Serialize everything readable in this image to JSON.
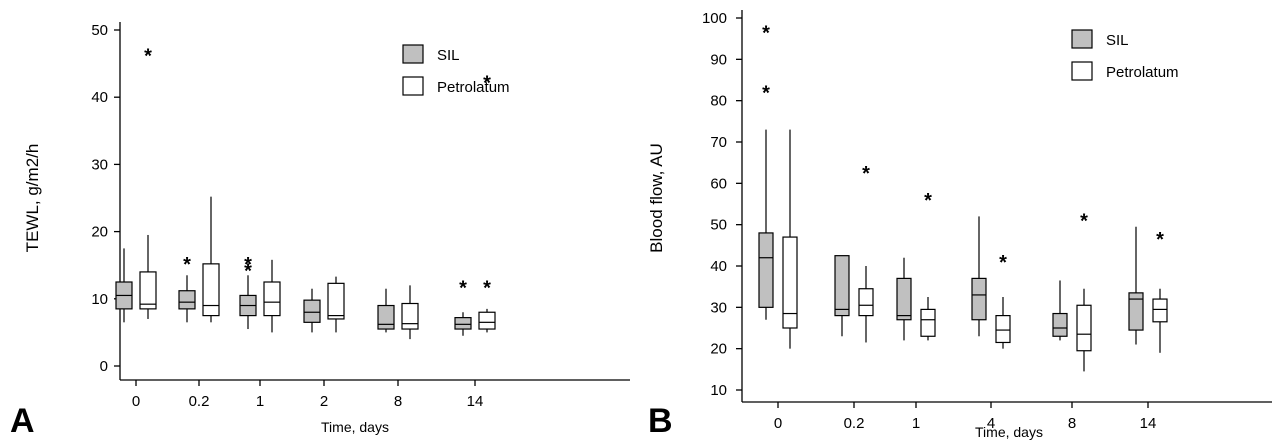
{
  "chart_data": [
    {
      "panel_label": "A",
      "type": "box",
      "ylabel": "TEWL, g/m2/h",
      "xlabel": "Time, days",
      "ylim": [
        0,
        50
      ],
      "yticks": [
        0,
        10,
        20,
        30,
        40,
        50
      ],
      "legend_position": "top-right",
      "categories": [
        "0",
        "0.2",
        "1",
        "2",
        "8",
        "14"
      ],
      "series": [
        {
          "name": "SIL",
          "fill": "#c0c0c0",
          "boxes": [
            {
              "whisker_low": 6.5,
              "q1": 8.5,
              "median": 10.5,
              "q3": 12.5,
              "whisker_high": 17.5,
              "outliers": []
            },
            {
              "whisker_low": 6.5,
              "q1": 8.5,
              "median": 9.5,
              "q3": 11.2,
              "whisker_high": 13.5,
              "outliers": [
                15.5
              ]
            },
            {
              "whisker_low": 5.5,
              "q1": 7.5,
              "median": 9,
              "q3": 10.5,
              "whisker_high": 13.5,
              "outliers": [
                14.5,
                15.5
              ]
            },
            {
              "whisker_low": 5,
              "q1": 6.5,
              "median": 8,
              "q3": 9.8,
              "whisker_high": 11.5,
              "outliers": []
            },
            {
              "whisker_low": 5,
              "q1": 5.5,
              "median": 6.2,
              "q3": 9,
              "whisker_high": 11.5,
              "outliers": []
            },
            {
              "whisker_low": 4.5,
              "q1": 5.5,
              "median": 6.2,
              "q3": 7.2,
              "whisker_high": 8,
              "outliers": [
                12
              ]
            }
          ]
        },
        {
          "name": "Petrolatum",
          "fill": "#ffffff",
          "boxes": [
            {
              "whisker_low": 7,
              "q1": 8.5,
              "median": 9.2,
              "q3": 14,
              "whisker_high": 19.5,
              "outliers": [
                46.5
              ]
            },
            {
              "whisker_low": 6.5,
              "q1": 7.5,
              "median": 9,
              "q3": 15.2,
              "whisker_high": 25.2,
              "outliers": []
            },
            {
              "whisker_low": 5,
              "q1": 7.5,
              "median": 9.5,
              "q3": 12.5,
              "whisker_high": 15.8,
              "outliers": []
            },
            {
              "whisker_low": 5,
              "q1": 7,
              "median": 7.5,
              "q3": 12.3,
              "whisker_high": 13.3,
              "outliers": []
            },
            {
              "whisker_low": 4,
              "q1": 5.5,
              "median": 6.3,
              "q3": 9.3,
              "whisker_high": 12,
              "outliers": []
            },
            {
              "whisker_low": 5,
              "q1": 5.5,
              "median": 6.5,
              "q3": 8,
              "whisker_high": 8.5,
              "outliers": [
                12,
                42.5
              ]
            }
          ]
        }
      ]
    },
    {
      "panel_label": "B",
      "type": "box",
      "ylabel": "Blood flow, AU",
      "xlabel": "Time, days",
      "ylim": [
        10,
        100
      ],
      "yticks": [
        10,
        20,
        30,
        40,
        50,
        60,
        70,
        80,
        90,
        100
      ],
      "legend_position": "top-right",
      "categories": [
        "0",
        "0.2",
        "1",
        "4",
        "8",
        "14"
      ],
      "series": [
        {
          "name": "SIL",
          "fill": "#c0c0c0",
          "boxes": [
            {
              "whisker_low": 27,
              "q1": 30,
              "median": 42,
              "q3": 48,
              "whisker_high": 73,
              "outliers": [
                82.5,
                97
              ]
            },
            {
              "whisker_low": 23,
              "q1": 28,
              "median": 29.5,
              "q3": 42.5,
              "whisker_high": 42.5,
              "outliers": []
            },
            {
              "whisker_low": 22,
              "q1": 27,
              "median": 28,
              "q3": 37,
              "whisker_high": 42,
              "outliers": []
            },
            {
              "whisker_low": 23,
              "q1": 27,
              "median": 33,
              "q3": 37,
              "whisker_high": 52,
              "outliers": []
            },
            {
              "whisker_low": 22,
              "q1": 23,
              "median": 25,
              "q3": 28.5,
              "whisker_high": 36.5,
              "outliers": []
            },
            {
              "whisker_low": 21,
              "q1": 24.5,
              "median": 32,
              "q3": 33.5,
              "whisker_high": 49.5,
              "outliers": []
            }
          ]
        },
        {
          "name": "Petrolatum",
          "fill": "#ffffff",
          "boxes": [
            {
              "whisker_low": 20,
              "q1": 25,
              "median": 28.5,
              "q3": 47,
              "whisker_high": 73,
              "outliers": []
            },
            {
              "whisker_low": 21.5,
              "q1": 28,
              "median": 30.5,
              "q3": 34.5,
              "whisker_high": 40,
              "outliers": [
                63
              ]
            },
            {
              "whisker_low": 22,
              "q1": 23,
              "median": 27,
              "q3": 29.5,
              "whisker_high": 32.5,
              "outliers": [
                56.5
              ]
            },
            {
              "whisker_low": 20,
              "q1": 21.5,
              "median": 24.5,
              "q3": 28,
              "whisker_high": 32.5,
              "outliers": [
                41.5
              ]
            },
            {
              "whisker_low": 14.5,
              "q1": 19.5,
              "median": 23.5,
              "q3": 30.5,
              "whisker_high": 34.5,
              "outliers": [
                51.5
              ]
            },
            {
              "whisker_low": 19,
              "q1": 26.5,
              "median": 29.5,
              "q3": 32,
              "whisker_high": 34.5,
              "outliers": [
                47
              ]
            }
          ]
        }
      ]
    }
  ]
}
